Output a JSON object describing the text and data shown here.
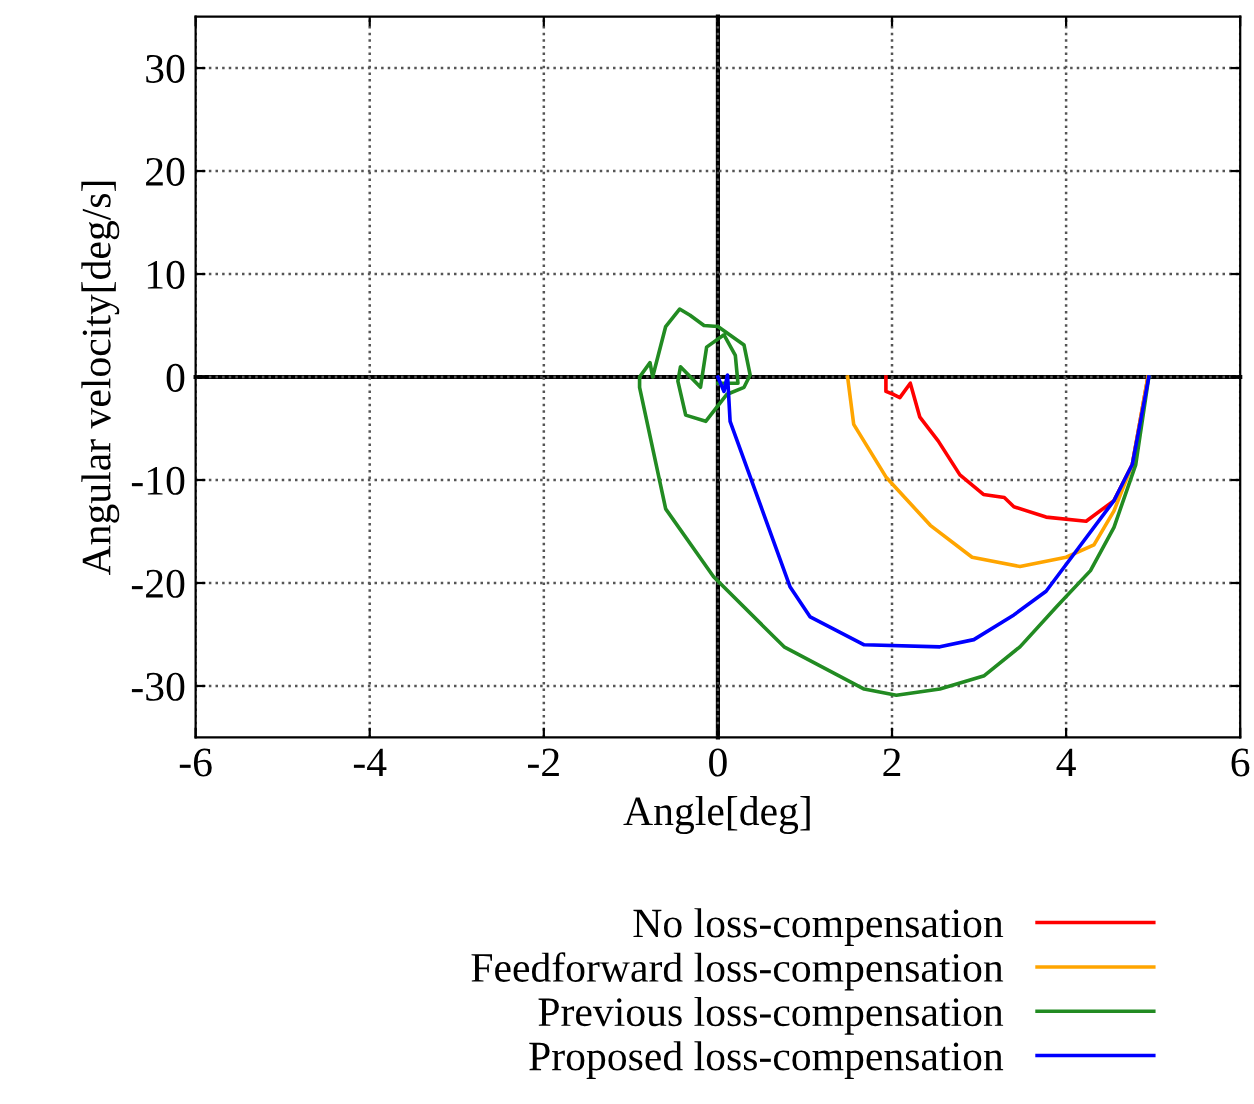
{
  "chart_data": {
    "type": "line",
    "xlabel": "Angle[deg]",
    "ylabel": "Angular velocity[deg/s]",
    "xlim": [
      -6,
      6
    ],
    "ylim": [
      -35,
      35
    ],
    "xticks": [
      -6,
      -4,
      -2,
      0,
      2,
      4,
      6
    ],
    "yticks": [
      -30,
      -20,
      -10,
      0,
      10,
      20,
      30
    ],
    "grid": true,
    "legend": "bottom",
    "line_style": "solid",
    "series": [
      {
        "name": "No loss-compensation",
        "color": "#ff0000",
        "x": [
          4.94,
          4.76,
          4.55,
          4.23,
          3.77,
          3.4,
          3.29,
          3.05,
          2.78,
          2.53,
          2.32,
          2.21,
          2.09,
          2.02,
          1.93,
          1.93
        ],
        "values": [
          0,
          -8.5,
          -12,
          -14,
          -13.6,
          -12.6,
          -11.7,
          -11.4,
          -9.5,
          -6.2,
          -3.9,
          -0.6,
          -2,
          -1.7,
          -1.4,
          0
        ]
      },
      {
        "name": "Feedforward loss-compensation",
        "color": "#ffa500",
        "x": [
          4.94,
          4.76,
          4.55,
          4.32,
          4.0,
          3.47,
          2.92,
          2.44,
          1.93,
          1.56,
          1.49
        ],
        "values": [
          0,
          -8.5,
          -13,
          -16.3,
          -17.5,
          -18.4,
          -17.5,
          -14.4,
          -9.7,
          -4.6,
          0
        ]
      },
      {
        "name": "Previous loss-compensation",
        "color": "#228b22",
        "x": [
          4.95,
          4.8,
          4.55,
          4.28,
          3.89,
          3.47,
          3.06,
          2.55,
          2.05,
          1.68,
          0.76,
          -0.05,
          -0.6,
          -0.9,
          -0.9,
          -0.78,
          -0.75,
          -0.6,
          -0.44,
          -0.32,
          -0.16,
          0,
          0.3,
          0.37,
          0.3,
          0.1,
          -0.14,
          -0.37,
          -0.46,
          -0.43,
          -0.2,
          -0.13,
          0.07,
          0.2,
          0.23,
          0
        ],
        "values": [
          0,
          -8.5,
          -14.6,
          -18.8,
          -22.3,
          -26.2,
          -29,
          -30.3,
          -30.9,
          -30.3,
          -26.2,
          -19.4,
          -12.8,
          -1,
          0,
          1.4,
          0,
          4.9,
          6.6,
          6.0,
          5.0,
          4.9,
          3.1,
          0.2,
          -1,
          -1.7,
          -4.3,
          -3.7,
          -0.4,
          1,
          -1,
          2.9,
          4.1,
          2.1,
          -0.6,
          -0.6
        ]
      },
      {
        "name": "Proposed loss-compensation",
        "color": "#0000ff",
        "x": [
          4.95,
          4.76,
          4.55,
          3.77,
          3.4,
          2.94,
          2.55,
          1.68,
          1.06,
          0.83,
          0.14,
          0.11,
          0.07,
          0
        ],
        "values": [
          0,
          -8.5,
          -12,
          -20.8,
          -23.1,
          -25.5,
          -26.2,
          -26,
          -23.3,
          -20.4,
          -4.3,
          0.2,
          -1.4,
          0
        ]
      }
    ]
  }
}
